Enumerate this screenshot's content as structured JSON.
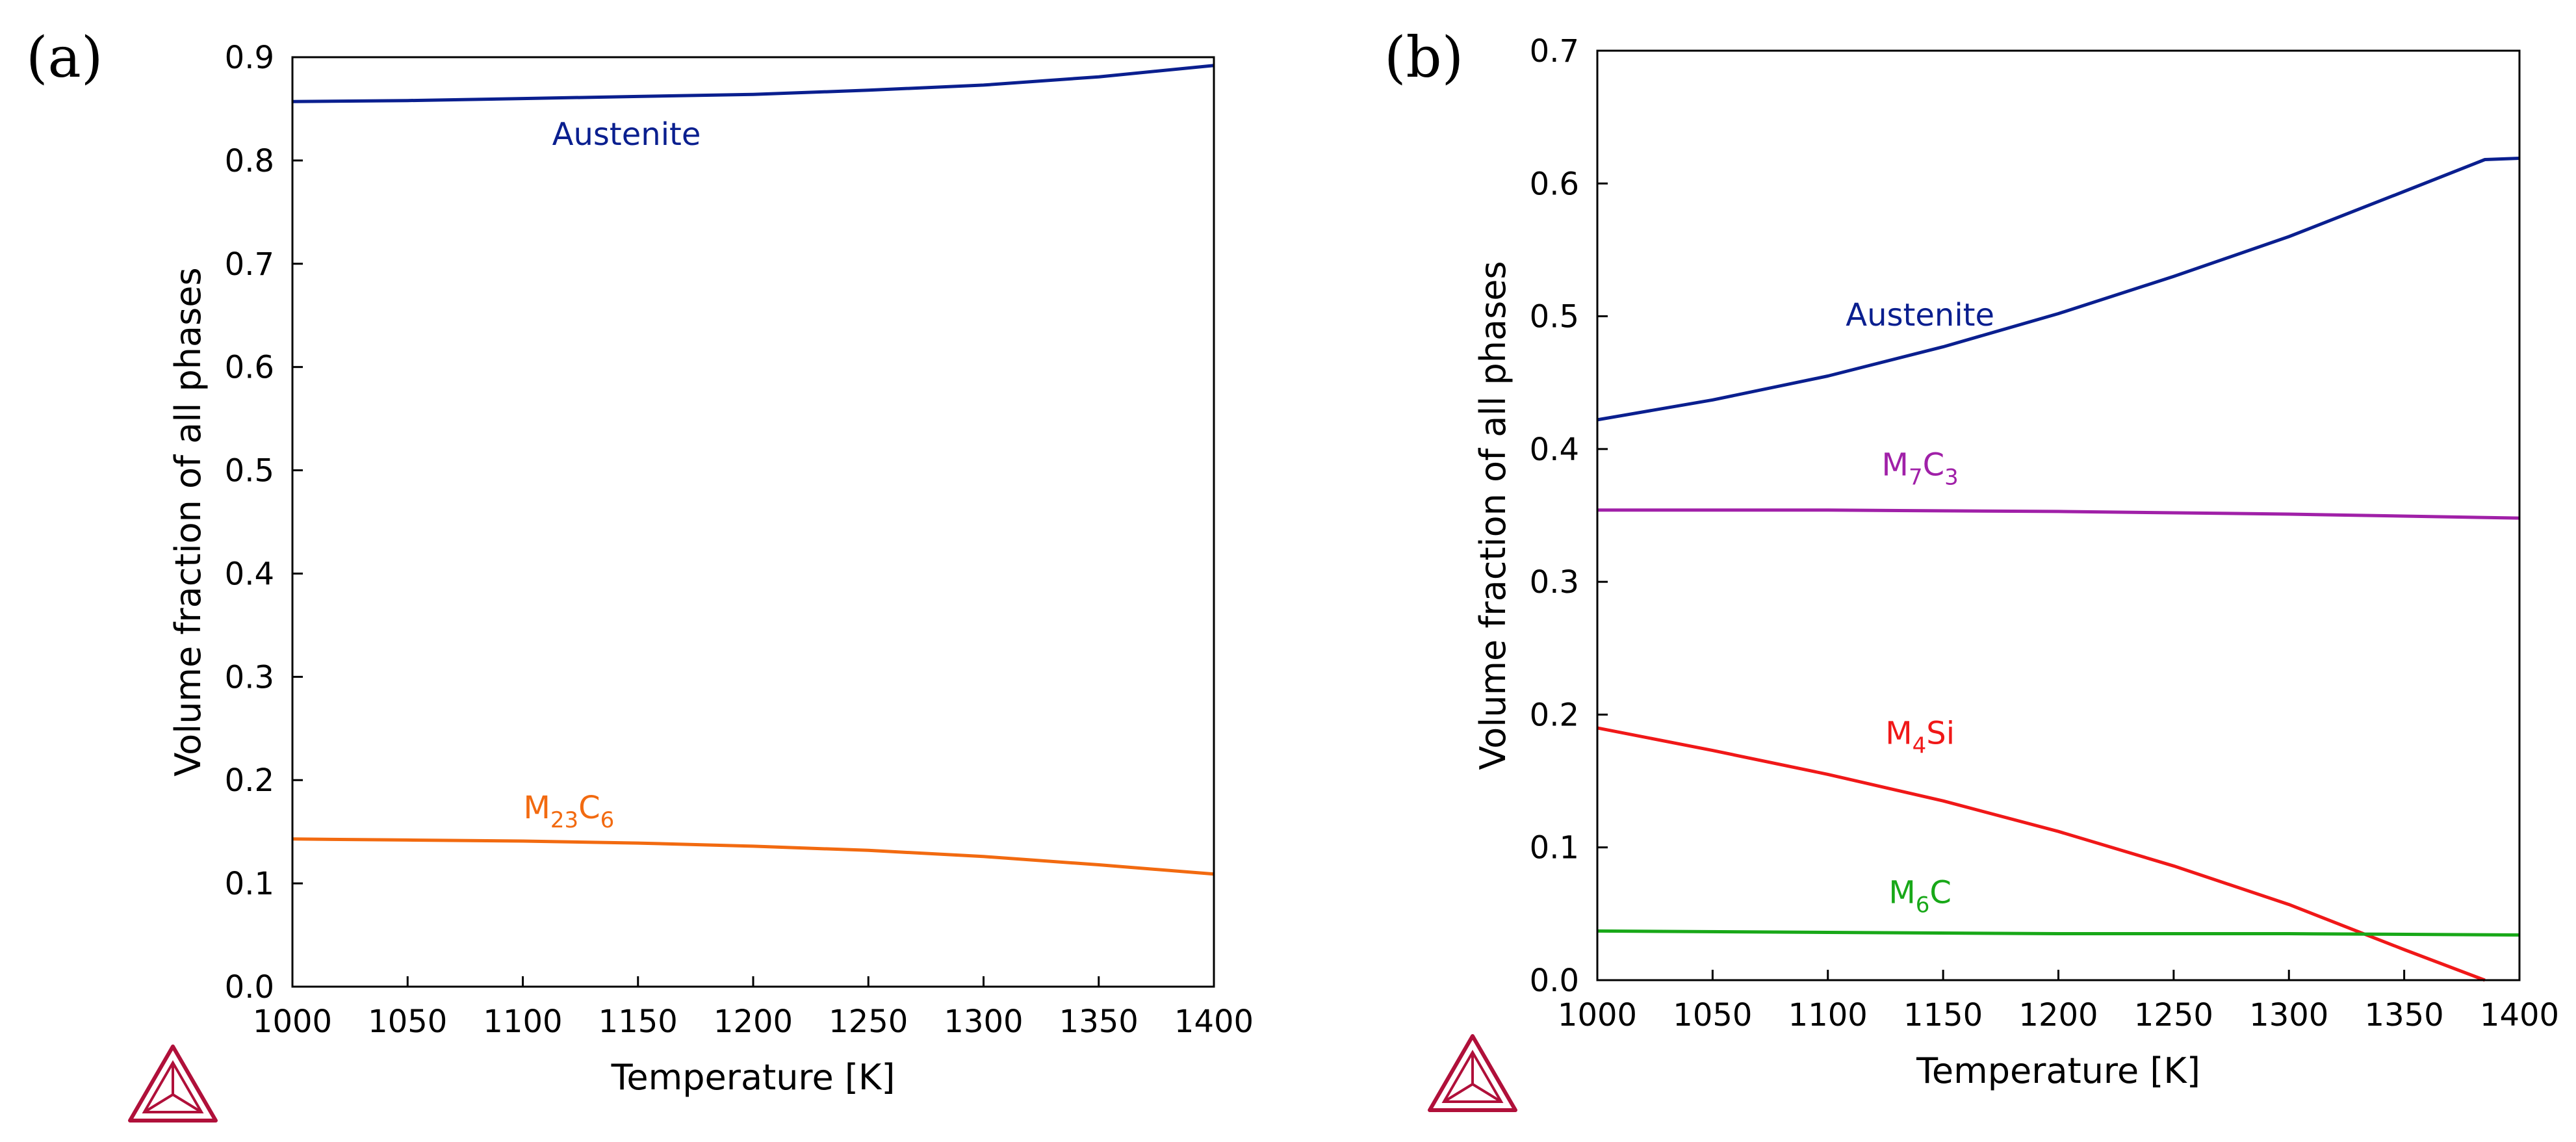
{
  "chart_data": [
    {
      "type": "line",
      "panel_label": "(a)",
      "xlabel": "Temperature [K]",
      "ylabel": "Volume fraction of all phases",
      "xlim": [
        1000,
        1400
      ],
      "ylim": [
        0,
        0.9
      ],
      "xticks": [
        1000,
        1050,
        1100,
        1150,
        1200,
        1250,
        1300,
        1350,
        1400
      ],
      "xtick_labels": [
        "1000",
        "1050",
        "1100",
        "1150",
        "1200",
        "1250",
        "1300",
        "1350",
        "1400"
      ],
      "yticks": [
        0,
        0.1,
        0.2,
        0.3,
        0.4,
        0.5,
        0.6,
        0.7,
        0.8,
        0.9
      ],
      "ytick_labels": [
        "0.0",
        "0.1",
        "0.2",
        "0.3",
        "0.4",
        "0.5",
        "0.6",
        "0.7",
        "0.8",
        "0.9"
      ],
      "series": [
        {
          "name": "Austenite",
          "label_main": "Austenite",
          "label_sub1": "",
          "label_mid": "",
          "label_sub2": "",
          "color": "#0a1f8f",
          "label_at": [
            1145,
            0.815
          ],
          "points": [
            [
              1000,
              0.857
            ],
            [
              1050,
              0.858
            ],
            [
              1100,
              0.86
            ],
            [
              1150,
              0.862
            ],
            [
              1200,
              0.864
            ],
            [
              1250,
              0.868
            ],
            [
              1300,
              0.873
            ],
            [
              1350,
              0.881
            ],
            [
              1400,
              0.892
            ]
          ]
        },
        {
          "name": "M23C6",
          "label_main": "M",
          "label_sub1": "23",
          "label_mid": "C",
          "label_sub2": "6",
          "color": "#f26a10",
          "label_at": [
            1120,
            0.163
          ],
          "points": [
            [
              1000,
              0.143
            ],
            [
              1050,
              0.142
            ],
            [
              1100,
              0.141
            ],
            [
              1150,
              0.139
            ],
            [
              1200,
              0.136
            ],
            [
              1250,
              0.132
            ],
            [
              1300,
              0.126
            ],
            [
              1350,
              0.118
            ],
            [
              1400,
              0.109
            ]
          ]
        }
      ]
    },
    {
      "type": "line",
      "panel_label": "(b)",
      "xlabel": "Temperature [K]",
      "ylabel": "Volume fraction of all phases",
      "xlim": [
        1000,
        1400
      ],
      "ylim": [
        0,
        0.7
      ],
      "xticks": [
        1000,
        1050,
        1100,
        1150,
        1200,
        1250,
        1300,
        1350,
        1400
      ],
      "xtick_labels": [
        "1000",
        "1050",
        "1100",
        "1150",
        "1200",
        "1250",
        "1300",
        "1350",
        "1400"
      ],
      "yticks": [
        0,
        0.1,
        0.2,
        0.3,
        0.4,
        0.5,
        0.6,
        0.7
      ],
      "ytick_labels": [
        "0.0",
        "0.1",
        "0.2",
        "0.3",
        "0.4",
        "0.5",
        "0.6",
        "0.7"
      ],
      "series": [
        {
          "name": "Austenite",
          "label_main": "Austenite",
          "label_sub1": "",
          "label_mid": "",
          "label_sub2": "",
          "color": "#0a1f8f",
          "label_at": [
            1140,
            0.493
          ],
          "points": [
            [
              1000,
              0.422
            ],
            [
              1050,
              0.437
            ],
            [
              1100,
              0.455
            ],
            [
              1150,
              0.477
            ],
            [
              1200,
              0.502
            ],
            [
              1250,
              0.53
            ],
            [
              1300,
              0.56
            ],
            [
              1350,
              0.594
            ],
            [
              1385,
              0.618
            ],
            [
              1400,
              0.619
            ]
          ]
        },
        {
          "name": "M7C3",
          "label_main": "M",
          "label_sub1": "7",
          "label_mid": "C",
          "label_sub2": "3",
          "color": "#a020a8",
          "label_at": [
            1140,
            0.38
          ],
          "points": [
            [
              1000,
              0.354
            ],
            [
              1100,
              0.354
            ],
            [
              1200,
              0.353
            ],
            [
              1300,
              0.351
            ],
            [
              1400,
              0.348
            ]
          ]
        },
        {
          "name": "M4Si",
          "label_main": "M",
          "label_sub1": "4",
          "label_mid": "Si",
          "label_sub2": "",
          "color": "#f01818",
          "label_at": [
            1140,
            0.178
          ],
          "points": [
            [
              1000,
              0.19
            ],
            [
              1050,
              0.173
            ],
            [
              1100,
              0.155
            ],
            [
              1150,
              0.135
            ],
            [
              1200,
              0.112
            ],
            [
              1250,
              0.086
            ],
            [
              1300,
              0.057
            ],
            [
              1350,
              0.023
            ],
            [
              1385,
              0.0
            ]
          ]
        },
        {
          "name": "M6C",
          "label_main": "M",
          "label_sub1": "6",
          "label_mid": "C",
          "label_sub2": "",
          "color": "#18a818",
          "label_at": [
            1140,
            0.058
          ],
          "points": [
            [
              1000,
              0.037
            ],
            [
              1100,
              0.036
            ],
            [
              1200,
              0.035
            ],
            [
              1300,
              0.035
            ],
            [
              1400,
              0.034
            ]
          ]
        }
      ]
    }
  ]
}
